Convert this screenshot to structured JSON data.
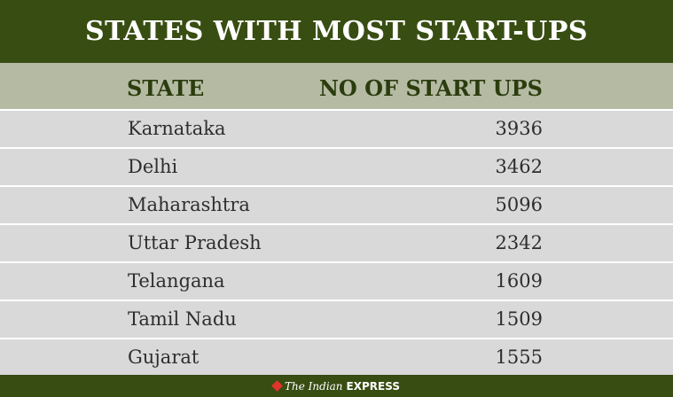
{
  "title": "STATES WITH MOST START-UPS",
  "headers": {
    "state": "STATE",
    "count": "NO OF START UPS"
  },
  "colors": {
    "title_bg": "#384d12",
    "header_bg": "#b5bba3",
    "row_bg": "#d9d9d9",
    "header_text": "#2b3c0e"
  },
  "footer": {
    "brand_icon": "diamond-logo-icon",
    "brand_part1": "The Indian",
    "brand_part2": "EXPRESS"
  },
  "chart_data": {
    "type": "table",
    "title": "STATES WITH MOST START-UPS",
    "columns": [
      "STATE",
      "NO OF START UPS"
    ],
    "rows": [
      {
        "state": "Karnataka",
        "count": "3936"
      },
      {
        "state": "Delhi",
        "count": "3462"
      },
      {
        "state": "Maharashtra",
        "count": "5096"
      },
      {
        "state": "Uttar Pradesh",
        "count": "2342"
      },
      {
        "state": "Telangana",
        "count": "1609"
      },
      {
        "state": "Tamil Nadu",
        "count": "1509"
      },
      {
        "state": "Gujarat",
        "count": "1555"
      }
    ]
  }
}
